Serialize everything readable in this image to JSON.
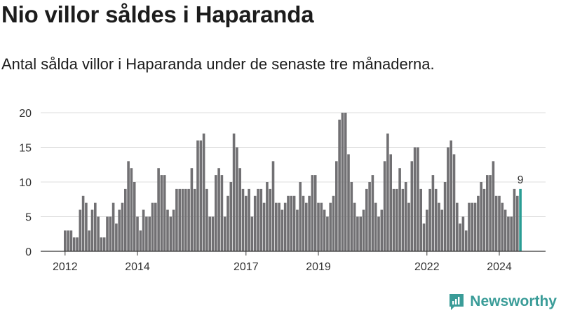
{
  "header": {
    "title": "Nio villor såldes i Haparanda",
    "subtitle": "Antal sålda villor i Haparanda under de senaste tre månaderna."
  },
  "brand": {
    "name": "Newsworthy",
    "icon": "newsworthy-logo-icon"
  },
  "colors": {
    "bar": "#717073",
    "highlight": "#2a9d94",
    "grid": "#dddddd",
    "axis": "#333333"
  },
  "chart_data": {
    "type": "bar",
    "title": "Nio villor såldes i Haparanda",
    "subtitle": "Antal sålda villor i Haparanda under de senaste tre månaderna.",
    "xlabel": "",
    "ylabel": "",
    "ylim": [
      0,
      20
    ],
    "yticks": [
      "0",
      "5",
      "10",
      "15",
      "20"
    ],
    "xticks": [
      {
        "label": "2012",
        "index": 0
      },
      {
        "label": "2014",
        "index": 24
      },
      {
        "label": "2017",
        "index": 60
      },
      {
        "label": "2019",
        "index": 84
      },
      {
        "label": "2022",
        "index": 120
      },
      {
        "label": "2024",
        "index": 144
      }
    ],
    "grid": true,
    "last_value_label": "9",
    "values": [
      3,
      3,
      3,
      2,
      2,
      6,
      8,
      7,
      3,
      6,
      7,
      5,
      2,
      2,
      5,
      5,
      7,
      4,
      6,
      7,
      9,
      13,
      12,
      10,
      5,
      3,
      6,
      5,
      5,
      7,
      7,
      12,
      11,
      11,
      6,
      5,
      6,
      9,
      9,
      9,
      9,
      9,
      12,
      9,
      16,
      16,
      17,
      9,
      5,
      5,
      11,
      12,
      11,
      5,
      8,
      10,
      17,
      15,
      12,
      9,
      8,
      9,
      5,
      8,
      9,
      9,
      7,
      10,
      9,
      13,
      7,
      7,
      6,
      7,
      8,
      8,
      8,
      6,
      10,
      8,
      7,
      8,
      11,
      11,
      7,
      7,
      6,
      5,
      7,
      8,
      13,
      19,
      20,
      20,
      14,
      10,
      7,
      5,
      5,
      6,
      9,
      10,
      11,
      7,
      5,
      6,
      13,
      17,
      14,
      9,
      9,
      12,
      9,
      10,
      7,
      13,
      15,
      15,
      9,
      4,
      6,
      9,
      11,
      9,
      7,
      6,
      10,
      15,
      16,
      14,
      7,
      4,
      5,
      3,
      7,
      7,
      7,
      8,
      10,
      9,
      11,
      11,
      13,
      8,
      8,
      7,
      6,
      5,
      5,
      9,
      8,
      9
    ]
  }
}
